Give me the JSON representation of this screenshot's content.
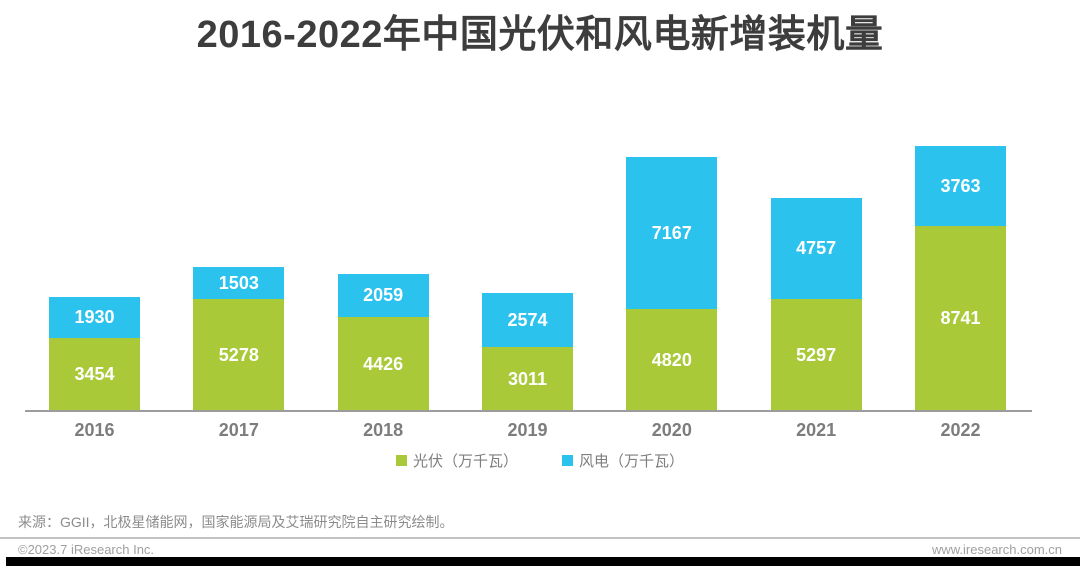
{
  "title": "2016-2022年中国光伏和风电新增装机量",
  "colors": {
    "pv_green": "#a9c938",
    "wind_blue": "#2bc2ee",
    "title_text": "#3d3d3d",
    "axis_line": "#9c9c9c",
    "category_text": "#7d7d7d",
    "value_label_text": "#ffffff"
  },
  "chart_data": {
    "type": "bar",
    "stacked": true,
    "title": "2016-2022年中国光伏和风电新增装机量",
    "categories": [
      "2016",
      "2017",
      "2018",
      "2019",
      "2020",
      "2021",
      "2022"
    ],
    "series": [
      {
        "name": "光伏（万千瓦）",
        "key": "pv",
        "color": "#a9c938",
        "values": [
          3454,
          5278,
          4426,
          3011,
          4820,
          5297,
          8741
        ]
      },
      {
        "name": "风电（万千瓦）",
        "key": "wind",
        "color": "#2bc2ee",
        "values": [
          1930,
          1503,
          2059,
          2574,
          7167,
          4757,
          3763
        ]
      }
    ],
    "unit": "万千瓦",
    "xlabel": "",
    "ylabel": "",
    "grid": false,
    "legend_position": "bottom",
    "value_labels": "inside-center"
  },
  "legend": [
    {
      "label": "光伏（万千瓦）",
      "color": "#a9c938"
    },
    {
      "label": "风电（万千瓦）",
      "color": "#2bc2ee"
    }
  ],
  "source_note": "来源：GGII，北极星储能网，国家能源局及艾瑞研究院自主研究绘制。",
  "footer": {
    "left": "©2023.7 iResearch Inc.",
    "right": "www.iresearch.com.cn"
  }
}
